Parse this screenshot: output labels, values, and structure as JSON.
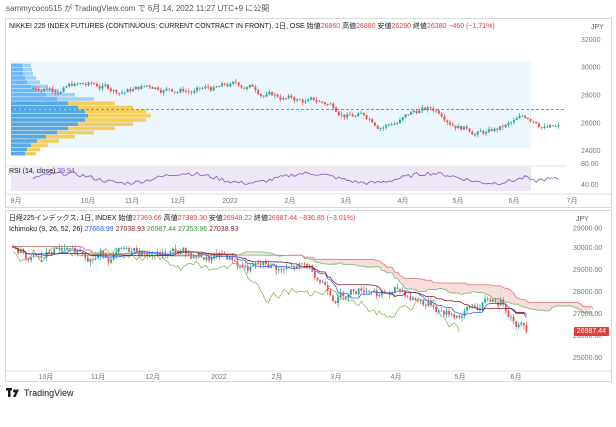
{
  "header": {
    "text": "sammycoco515 が TradingView.com で 6月 14, 2022 11:27 UTC+9 に公開"
  },
  "panel1": {
    "legend_title": "NIKKEI 225 INDEX FUTURES (CONTINUOUS: CURRENT CONTRACT IN FRONT), 1日, OSE",
    "open_label": "始値",
    "open": "26860",
    "high_label": "高値",
    "high": "26880",
    "low_label": "安値",
    "low": "26290",
    "close_label": "終値",
    "close": "26380",
    "change": "−460 (−1.71%)",
    "currency": "JPY",
    "yticks": [
      "32000",
      "30000",
      "28000",
      "26000",
      "24000"
    ],
    "rsi_label": "RSI (14, close)",
    "rsi_value": "39.94",
    "rsi_ticks": [
      "80.00",
      "40.00"
    ],
    "xticks": [
      "9月",
      "10月",
      "11月",
      "12月",
      "2022",
      "2月",
      "3月",
      "4月",
      "5月",
      "6月",
      "7月"
    ]
  },
  "panel2": {
    "legend_title": "日経225インデックス, 1日, INDEX",
    "open_label": "始値",
    "open": "27369.66",
    "high_label": "高値",
    "high": "27389.30",
    "low_label": "安値",
    "low": "26948.22",
    "close_label": "終値",
    "close": "26987.44",
    "change": "−836.85 (−3.01%)",
    "ichimoku_label": "Ichimoku (9, 26, 52, 26)",
    "ich_v1": "27668.99",
    "ich_v2": "27038.93",
    "ich_v3": "26987.44",
    "ich_v4": "27353.96",
    "ich_v5": "27038.93",
    "currency": "JPY",
    "yticks": [
      "29000.00",
      "28000.00",
      "27000.00",
      "26000.00",
      "25000.00"
    ],
    "yticks_top": [
      "29000.00",
      "28000.00"
    ],
    "top_ticks": [
      "JPY",
      "29000.00"
    ],
    "axis_ticks": [
      "29000.00",
      "30000.00",
      "29000.00",
      "28000.00",
      "27000.00",
      "26000.00",
      "25000.00"
    ],
    "price_tag": "26987.44",
    "xticks": [
      "10月",
      "11月",
      "12月",
      "2022",
      "2月",
      "3月",
      "4月",
      "5月",
      "6月"
    ]
  },
  "footer": {
    "brand": "TradingView"
  },
  "colors": {
    "up": "#26a69a",
    "down": "#ef5350",
    "rsi": "#7e57c2",
    "tenkan": "#2962ff",
    "kijun": "#8b1a1a"
  }
}
